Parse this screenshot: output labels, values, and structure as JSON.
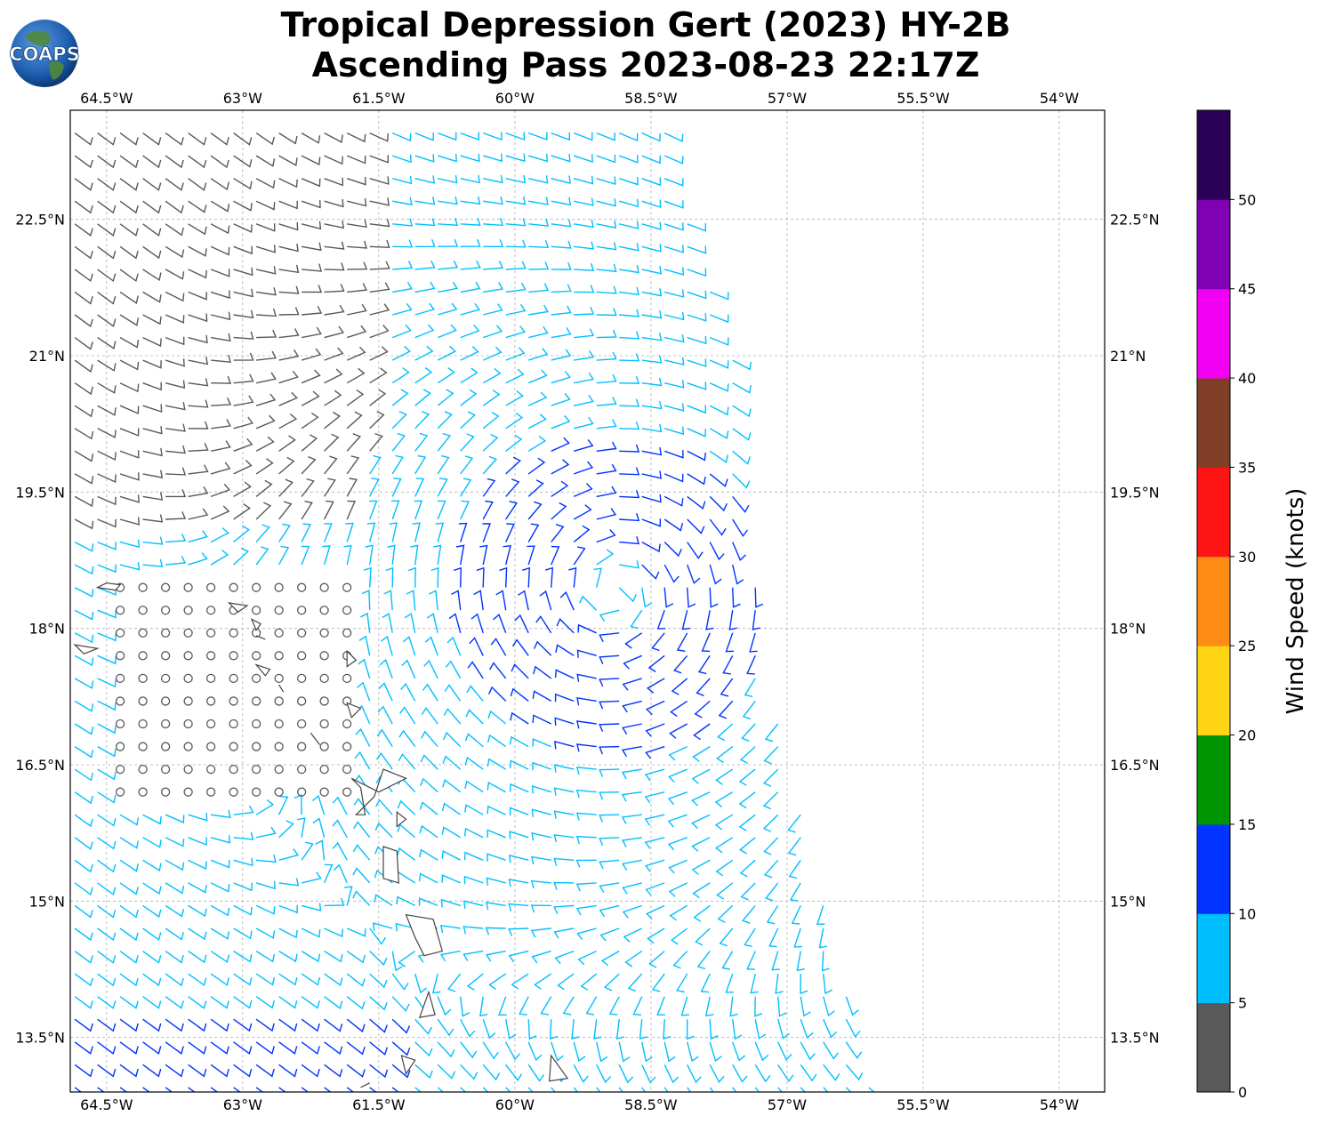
{
  "title": {
    "line1": "Tropical Depression Gert (2023) HY-2B",
    "line2": "Ascending Pass 2023-08-23 22:17Z"
  },
  "logo": {
    "text": "COAPS"
  },
  "map": {
    "lon_range": [
      -64.9,
      -53.5
    ],
    "lat_range": [
      12.9,
      23.7
    ],
    "lon_ticks": [
      "64.5°W",
      "63°W",
      "61.5°W",
      "60°W",
      "58.5°W",
      "57°W",
      "55.5°W",
      "54°W"
    ],
    "lon_tick_values": [
      -64.5,
      -63,
      -61.5,
      -60,
      -58.5,
      -57,
      -55.5,
      -54
    ],
    "lat_ticks": [
      "22.5°N",
      "21°N",
      "19.5°N",
      "18°N",
      "16.5°N",
      "15°N",
      "13.5°N"
    ],
    "lat_tick_values": [
      22.5,
      21,
      19.5,
      18,
      16.5,
      15,
      13.5
    ],
    "grid": true,
    "storm_center": [
      -58.9,
      18.4
    ],
    "swath_east_edge": [
      [
        -58.4,
        23.7
      ],
      [
        -57.6,
        21.0
      ],
      [
        -57.4,
        19.0
      ],
      [
        -57.2,
        17.5
      ],
      [
        -56.7,
        15.5
      ],
      [
        -56.2,
        13.4
      ],
      [
        -56.0,
        12.9
      ]
    ]
  },
  "islands": [
    {
      "name": "",
      "points": [
        [
          -64.6,
          18.45
        ],
        [
          -64.5,
          18.5
        ],
        [
          -64.35,
          18.48
        ],
        [
          -64.4,
          18.42
        ]
      ]
    },
    {
      "name": "",
      "points": [
        [
          -64.85,
          17.82
        ],
        [
          -64.6,
          17.78
        ],
        [
          -64.75,
          17.72
        ]
      ]
    },
    {
      "name": "",
      "points": [
        [
          -63.15,
          18.28
        ],
        [
          -62.95,
          18.25
        ],
        [
          -63.05,
          18.18
        ]
      ]
    },
    {
      "name": "",
      "points": [
        [
          -62.9,
          18.1
        ],
        [
          -62.8,
          18.05
        ],
        [
          -62.85,
          17.98
        ]
      ]
    },
    {
      "name": "",
      "points": [
        [
          -62.85,
          17.92
        ],
        [
          -62.75,
          17.88
        ]
      ]
    },
    {
      "name": "",
      "points": [
        [
          -62.85,
          17.6
        ],
        [
          -62.7,
          17.55
        ],
        [
          -62.75,
          17.48
        ]
      ]
    },
    {
      "name": "",
      "points": [
        [
          -62.6,
          17.38
        ],
        [
          -62.55,
          17.3
        ]
      ]
    },
    {
      "name": "",
      "points": [
        [
          -61.85,
          17.75
        ],
        [
          -61.75,
          17.65
        ],
        [
          -61.85,
          17.58
        ]
      ]
    },
    {
      "name": "",
      "points": [
        [
          -61.85,
          17.18
        ],
        [
          -61.7,
          17.12
        ],
        [
          -61.8,
          17.02
        ]
      ]
    },
    {
      "name": "",
      "points": [
        [
          -62.25,
          16.85
        ],
        [
          -62.15,
          16.72
        ]
      ]
    },
    {
      "name": "",
      "points": [
        [
          -61.8,
          16.35
        ],
        [
          -61.7,
          16.25
        ],
        [
          -61.65,
          15.95
        ],
        [
          -61.75,
          15.95
        ],
        [
          -61.55,
          16.15
        ],
        [
          -61.45,
          16.45
        ],
        [
          -61.2,
          16.35
        ],
        [
          -61.5,
          16.2
        ]
      ]
    },
    {
      "name": "",
      "points": [
        [
          -61.3,
          15.98
        ],
        [
          -61.2,
          15.9
        ],
        [
          -61.3,
          15.82
        ]
      ]
    },
    {
      "name": "",
      "points": [
        [
          -61.45,
          15.6
        ],
        [
          -61.3,
          15.55
        ],
        [
          -61.28,
          15.2
        ],
        [
          -61.45,
          15.25
        ]
      ]
    },
    {
      "name": "",
      "points": [
        [
          -61.2,
          14.85
        ],
        [
          -60.9,
          14.8
        ],
        [
          -60.8,
          14.45
        ],
        [
          -61.0,
          14.4
        ],
        [
          -61.1,
          14.6
        ]
      ]
    },
    {
      "name": "",
      "points": [
        [
          -60.95,
          14.0
        ],
        [
          -60.88,
          13.75
        ],
        [
          -61.05,
          13.72
        ]
      ]
    },
    {
      "name": "",
      "points": [
        [
          -61.25,
          13.3
        ],
        [
          -61.1,
          13.25
        ],
        [
          -61.2,
          13.1
        ]
      ]
    },
    {
      "name": "",
      "points": [
        [
          -61.7,
          12.95
        ],
        [
          -61.6,
          13.0
        ]
      ]
    },
    {
      "name": "",
      "points": [
        [
          -59.6,
          13.3
        ],
        [
          -59.42,
          13.05
        ],
        [
          -59.62,
          13.02
        ]
      ]
    }
  ],
  "colorbar": {
    "label": "Wind Speed (knots)",
    "ticks": [
      "0",
      "5",
      "10",
      "15",
      "20",
      "25",
      "30",
      "35",
      "40",
      "45",
      "50"
    ],
    "colors": [
      "#595959",
      "#00bfff",
      "#0033ff",
      "#009400",
      "#ffd414",
      "#ff8c14",
      "#ff1414",
      "#813e26",
      "#f200f2",
      "#8000b4",
      "#2b0057"
    ]
  }
}
